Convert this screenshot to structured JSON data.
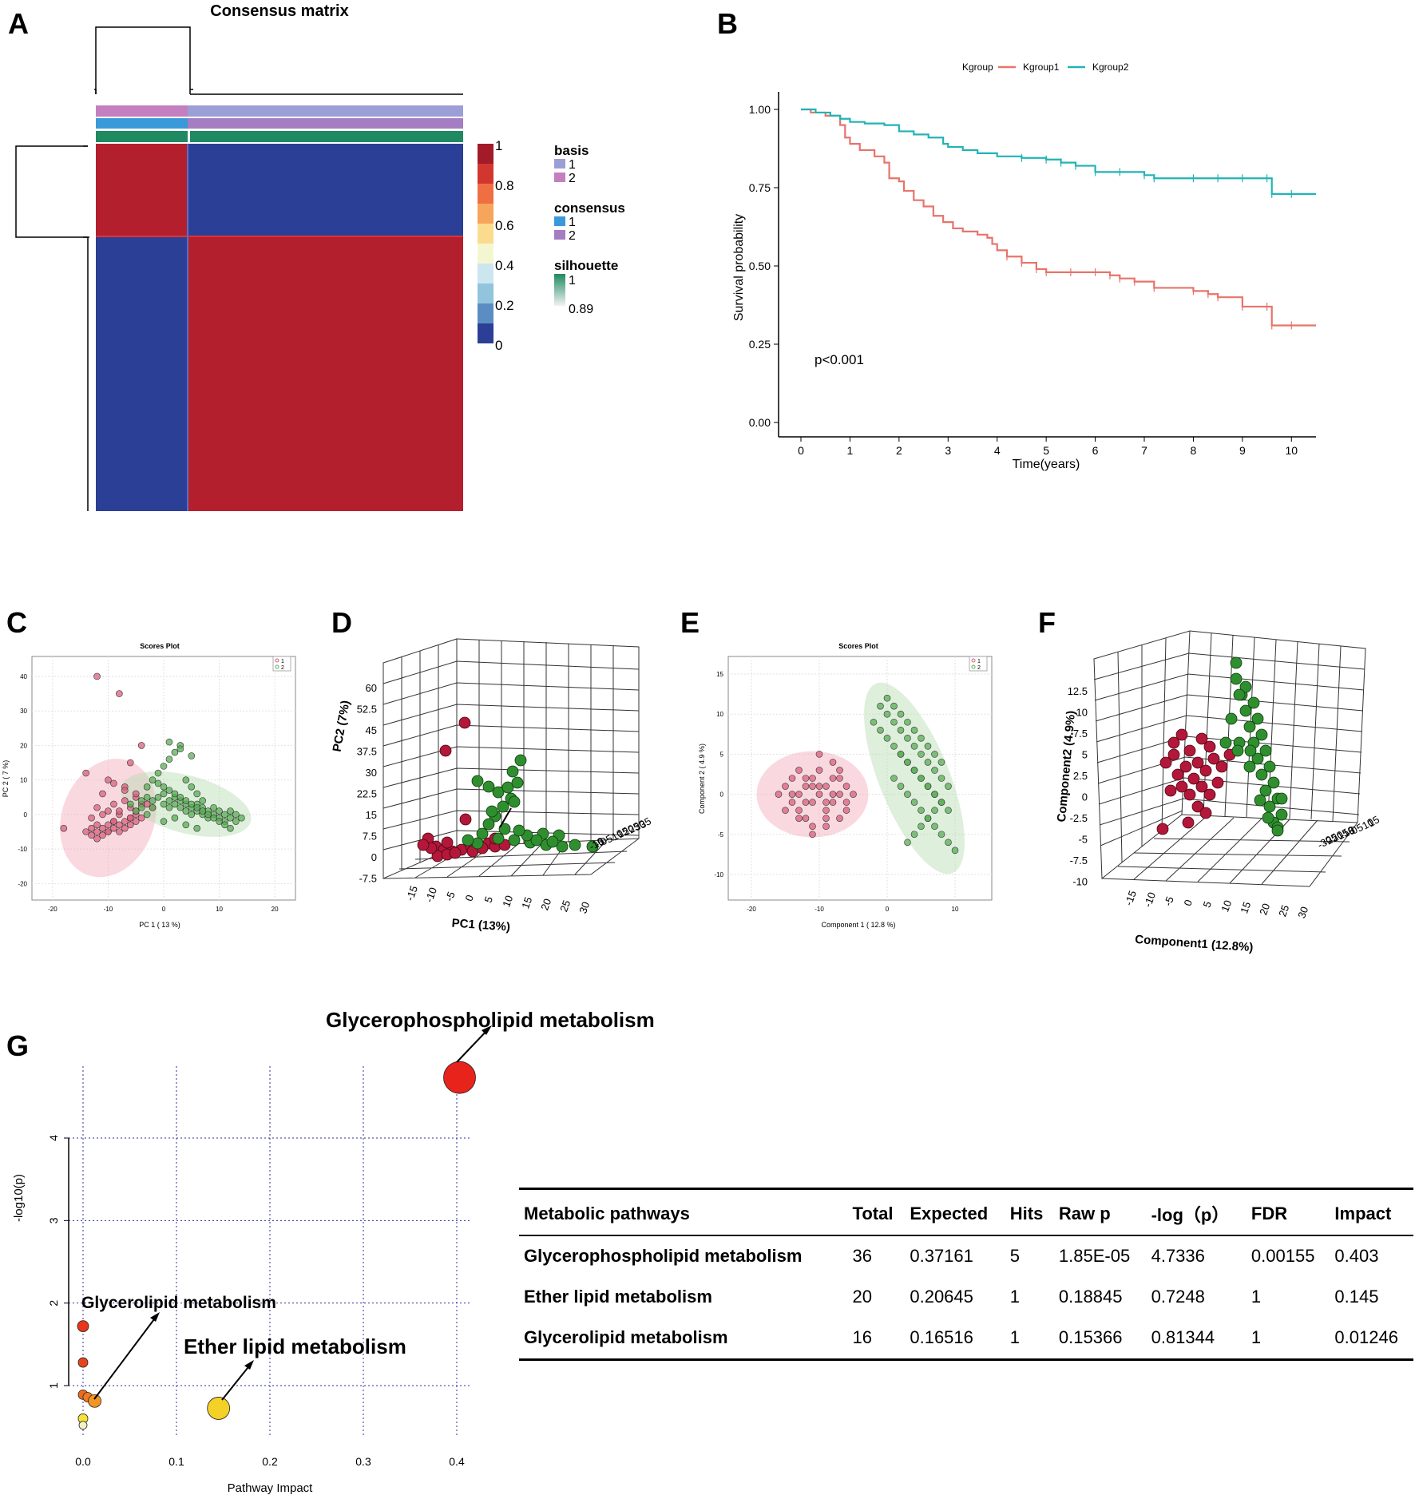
{
  "panel_letters": {
    "a": "A",
    "b": "B",
    "c": "C",
    "d": "D",
    "e": "E",
    "f": "F",
    "g": "G"
  },
  "colors": {
    "red": "#b41f2d",
    "blue": "#2b3f97",
    "kgroup1": "#e8736b",
    "kgroup2": "#22b3b5",
    "pink_pt": "#d9607e",
    "green_pt": "#5aae55",
    "dark_red": "#9e1030",
    "dark_green": "#2f7a2f",
    "basis1": "#9b9fd6",
    "basis2": "#c47fc0",
    "consensus1": "#3a9ad9",
    "consensus2": "#a57dc2",
    "silhouette": "#1f8a62"
  },
  "panelA": {
    "title": "Consensus matrix",
    "colorbar_ticks": [
      "1",
      "0.8",
      "0.6",
      "0.4",
      "0.2",
      "0"
    ],
    "legend": {
      "basis_title": "basis",
      "basis_items": [
        "1",
        "2"
      ],
      "consensus_title": "consensus",
      "consensus_items": [
        "1",
        "2"
      ],
      "silhouette_title": "silhouette",
      "silhouette_range": [
        "1",
        "0.89"
      ]
    }
  },
  "panelB": {
    "legend_title": "Kgroup",
    "series_names": [
      "Kgroup1",
      "Kgroup2"
    ],
    "ylabel": "Survival probability",
    "xlabel": "Time(years)",
    "pvalue": "p<0.001",
    "y_ticks": [
      "0.00",
      "0.25",
      "0.50",
      "0.75",
      "1.00"
    ],
    "x_ticks": [
      "0",
      "1",
      "2",
      "3",
      "4",
      "5",
      "6",
      "7",
      "8",
      "9",
      "10"
    ]
  },
  "panelC": {
    "title": "Scores Plot",
    "xlabel": "PC 1 ( 13 %)",
    "ylabel": "PC 2 ( 7 %)",
    "legend": [
      "1",
      "2"
    ],
    "x_ticks": [
      "-20",
      "-10",
      "0",
      "10",
      "20"
    ],
    "y_ticks": [
      "40",
      "30",
      "20",
      "10",
      "0",
      "-10",
      "-20"
    ]
  },
  "panelD": {
    "ylabel": "PC2 (7%)",
    "xlabel": "PC1 (13%)",
    "z_ticks": [
      "60",
      "52.5",
      "45",
      "37.5",
      "30",
      "22.5",
      "15",
      "7.5",
      "0",
      "-7.5"
    ],
    "x_ticks": [
      "-15",
      "-10",
      "-5",
      "0",
      "5",
      "10",
      "15",
      "20",
      "25",
      "30"
    ],
    "depth_ticks": [
      "35",
      "30",
      "25",
      "20",
      "15",
      "10",
      "5",
      "0",
      "-5",
      "-10"
    ]
  },
  "panelE": {
    "title": "Scores Plot",
    "xlabel": "Component 1 ( 12.8 %)",
    "ylabel": "Component 2 ( 4.9 %)",
    "legend": [
      "1",
      "2"
    ],
    "x_ticks": [
      "-20",
      "-10",
      "0",
      "10"
    ],
    "y_ticks": [
      "15",
      "10",
      "5",
      "0",
      "-5",
      "-10"
    ]
  },
  "panelF": {
    "ylabel": "Component2 (4.9%)",
    "xlabel": "Component1 (12.8%)",
    "z_ticks": [
      "12.5",
      "10",
      "7.5",
      "5",
      "2.5",
      "0",
      "-2.5",
      "-5",
      "-7.5",
      "-10"
    ],
    "x_ticks": [
      "-15",
      "-10",
      "-5",
      "0",
      "5",
      "10",
      "15",
      "20",
      "25",
      "30"
    ],
    "depth_ticks": [
      "15",
      "10",
      "5",
      "0",
      "-5",
      "-10",
      "-15",
      "-20",
      "-25",
      "-30"
    ]
  },
  "panelG": {
    "xlabel": "Pathway Impact",
    "ylabel": "-log10(p)",
    "x_ticks": [
      "0.0",
      "0.1",
      "0.2",
      "0.3",
      "0.4"
    ],
    "y_ticks": [
      "1",
      "2",
      "3",
      "4"
    ],
    "annotations": [
      "Glycerophospholipid metabolism",
      "Glycerolipid metabolism",
      "Ether lipid metabolism"
    ]
  },
  "chart_data": [
    {
      "type": "line",
      "title": "",
      "xlabel": "Time(years)",
      "ylabel": "Survival probability",
      "xlim": [
        0,
        10.5
      ],
      "ylim": [
        0,
        1
      ],
      "series": [
        {
          "name": "Kgroup1",
          "x": [
            0,
            0.2,
            0.5,
            0.8,
            0.9,
            1.0,
            1.2,
            1.5,
            1.7,
            1.8,
            2.0,
            2.1,
            2.3,
            2.5,
            2.7,
            2.9,
            3.1,
            3.3,
            3.6,
            3.8,
            3.9,
            4.0,
            4.2,
            4.5,
            4.8,
            5.0,
            5.5,
            6.0,
            6.3,
            6.5,
            6.8,
            7.2,
            8.0,
            8.3,
            8.5,
            9.0,
            9.5,
            9.6,
            10.0,
            10.5
          ],
          "values": [
            1.0,
            0.99,
            0.98,
            0.95,
            0.91,
            0.89,
            0.87,
            0.85,
            0.83,
            0.78,
            0.77,
            0.74,
            0.71,
            0.69,
            0.66,
            0.64,
            0.62,
            0.61,
            0.6,
            0.59,
            0.57,
            0.55,
            0.53,
            0.51,
            0.49,
            0.48,
            0.48,
            0.48,
            0.47,
            0.46,
            0.45,
            0.43,
            0.42,
            0.41,
            0.4,
            0.37,
            0.37,
            0.31,
            0.31,
            0.31
          ]
        },
        {
          "name": "Kgroup2",
          "x": [
            0,
            0.3,
            0.6,
            0.8,
            1.0,
            1.3,
            1.7,
            2.0,
            2.3,
            2.6,
            2.9,
            3.0,
            3.3,
            3.6,
            4.0,
            4.5,
            5.0,
            5.3,
            5.6,
            6.0,
            6.5,
            7.0,
            7.2,
            8.0,
            8.5,
            9.0,
            9.5,
            9.6,
            10.0,
            10.5
          ],
          "values": [
            1.0,
            0.99,
            0.98,
            0.97,
            0.96,
            0.955,
            0.95,
            0.93,
            0.92,
            0.91,
            0.89,
            0.88,
            0.87,
            0.86,
            0.85,
            0.845,
            0.84,
            0.83,
            0.82,
            0.8,
            0.8,
            0.79,
            0.78,
            0.78,
            0.78,
            0.78,
            0.78,
            0.73,
            0.73,
            0.73
          ]
        }
      ],
      "annotation": "p<0.001"
    },
    {
      "type": "scatter",
      "title": "Scores Plot",
      "xlabel": "PC 1 ( 13 %)",
      "ylabel": "PC 2 ( 7 %)",
      "xlim": [
        -22,
        22
      ],
      "ylim": [
        -22,
        43
      ],
      "series": [
        {
          "name": "1",
          "x": [
            -18,
            -14,
            -13,
            -13,
            -12,
            -12,
            -11,
            -11,
            -10,
            -10,
            -9,
            -9,
            -8,
            -8,
            -7,
            -7,
            -6,
            -6,
            -5,
            -5,
            -4,
            -12,
            -10,
            -9,
            -8,
            -7,
            -6,
            -5,
            -4,
            -13,
            -11,
            -9,
            -8,
            -6,
            -5,
            -10,
            -14,
            -11,
            -7,
            -3,
            -12,
            -8,
            -6,
            -4,
            -9,
            -7,
            -5,
            -2,
            -12,
            -10
          ],
          "values": [
            -4,
            -5,
            -6,
            -4,
            -5,
            -3,
            -4,
            -6,
            -5,
            -3,
            -4,
            -2,
            -5,
            -3,
            -4,
            -2,
            -3,
            -1,
            -2,
            0,
            -1,
            2,
            1,
            3,
            0,
            4,
            2,
            5,
            3,
            -1,
            0,
            -2,
            1,
            -1,
            1,
            10,
            12,
            6,
            8,
            3,
            40,
            35,
            15,
            20,
            9,
            7,
            6,
            2,
            -7,
            -5
          ]
        },
        {
          "name": "2",
          "x": [
            -6,
            -4,
            -3,
            -2,
            -2,
            -1,
            0,
            0,
            1,
            1,
            2,
            2,
            3,
            3,
            4,
            4,
            5,
            5,
            6,
            6,
            7,
            7,
            8,
            8,
            9,
            9,
            10,
            10,
            11,
            11,
            12,
            12,
            13,
            13,
            14,
            -1,
            0,
            1,
            2,
            3,
            4,
            5,
            6,
            7,
            8,
            9,
            10,
            11,
            12,
            -3,
            -2,
            -1,
            0,
            1,
            2,
            3,
            4,
            5,
            6,
            7,
            -5,
            -4,
            -3,
            0,
            2,
            4,
            6,
            1,
            3,
            5
          ],
          "values": [
            3,
            4,
            5,
            4,
            2,
            5,
            3,
            6,
            4,
            2,
            3,
            5,
            2,
            4,
            1,
            3,
            2,
            0,
            1,
            3,
            0,
            2,
            -1,
            1,
            0,
            2,
            -1,
            1,
            -2,
            0,
            -1,
            1,
            -2,
            0,
            -1,
            9,
            8,
            7,
            6,
            5,
            4,
            3,
            2,
            1,
            0,
            -1,
            -2,
            -3,
            -4,
            8,
            10,
            12,
            14,
            16,
            18,
            20,
            10,
            8,
            6,
            4,
            1,
            2,
            0,
            -2,
            -1,
            -3,
            -4,
            21,
            19,
            17
          ]
        }
      ]
    },
    {
      "type": "scatter",
      "title": "Scores Plot",
      "xlabel": "Component 1 ( 12.8 %)",
      "ylabel": "Component 2 ( 4.9 %)",
      "xlim": [
        -22,
        14
      ],
      "ylim": [
        -12,
        16
      ],
      "series": [
        {
          "name": "1",
          "x": [
            -16,
            -15,
            -14,
            -14,
            -13,
            -13,
            -12,
            -12,
            -11,
            -11,
            -10,
            -10,
            -9,
            -9,
            -8,
            -8,
            -7,
            -7,
            -6,
            -6,
            -5,
            -15,
            -13,
            -12,
            -11,
            -10,
            -9,
            -8,
            -7,
            -6,
            -14,
            -12,
            -11,
            -9,
            -8,
            -7,
            -10,
            -13,
            -11,
            -9
          ],
          "values": [
            0,
            1,
            -1,
            2,
            0,
            -2,
            1,
            -3,
            2,
            -1,
            0,
            3,
            -2,
            1,
            2,
            -1,
            0,
            -3,
            1,
            -2,
            0,
            -2,
            3,
            -1,
            -4,
            1,
            -3,
            4,
            2,
            -1,
            0,
            2,
            1,
            -1,
            0,
            3,
            5,
            -3,
            -5,
            -4
          ]
        },
        {
          "name": "2",
          "x": [
            -1,
            0,
            1,
            2,
            3,
            4,
            5,
            6,
            7,
            8,
            9,
            0,
            1,
            2,
            3,
            4,
            5,
            6,
            7,
            8,
            -2,
            -1,
            0,
            1,
            2,
            3,
            4,
            5,
            6,
            7,
            1,
            2,
            3,
            4,
            5,
            6,
            7,
            8,
            9,
            10,
            2,
            3,
            4,
            5,
            6,
            7,
            8,
            9,
            3,
            4,
            5,
            6,
            7,
            8
          ],
          "values": [
            11,
            10,
            9,
            8,
            7,
            6,
            5,
            4,
            3,
            2,
            1,
            12,
            11,
            10,
            9,
            8,
            7,
            6,
            5,
            4,
            9,
            8,
            7,
            6,
            5,
            4,
            3,
            2,
            1,
            0,
            2,
            1,
            0,
            -1,
            -2,
            -3,
            -4,
            -5,
            -6,
            -7,
            5,
            4,
            3,
            2,
            1,
            0,
            -1,
            -2,
            -6,
            -5,
            -4,
            -3,
            -2,
            -1
          ]
        }
      ]
    },
    {
      "type": "scatter",
      "title": "",
      "xlabel": "Pathway Impact",
      "ylabel": "-log10(p)",
      "xlim": [
        0,
        0.4
      ],
      "ylim": [
        0.5,
        4.7
      ],
      "series": [
        {
          "name": "pathways",
          "x": [
            0.403,
            0.0,
            0.0,
            0.0,
            0.005,
            0.01246,
            0.145,
            0.0,
            0.0
          ],
          "values": [
            4.7336,
            1.72,
            1.28,
            0.89,
            0.86,
            0.81344,
            0.7248,
            0.6,
            0.52
          ]
        }
      ]
    },
    {
      "type": "table",
      "columns": [
        "Metabolic pathways",
        "Total",
        "Expected",
        "Hits",
        "Raw p",
        "-log（p）",
        "FDR",
        "Impact"
      ],
      "rows": [
        [
          "Glycerophospholipid metabolism",
          "36",
          "0.37161",
          "5",
          "1.85E-05",
          "4.7336",
          "0.00155",
          "0.403"
        ],
        [
          "Ether lipid metabolism",
          "20",
          "0.20645",
          "1",
          "0.18845",
          "0.7248",
          "1",
          "0.145"
        ],
        [
          "Glycerolipid metabolism",
          "16",
          "0.16516",
          "1",
          "0.15366",
          "0.81344",
          "1",
          "0.01246"
        ]
      ]
    }
  ]
}
